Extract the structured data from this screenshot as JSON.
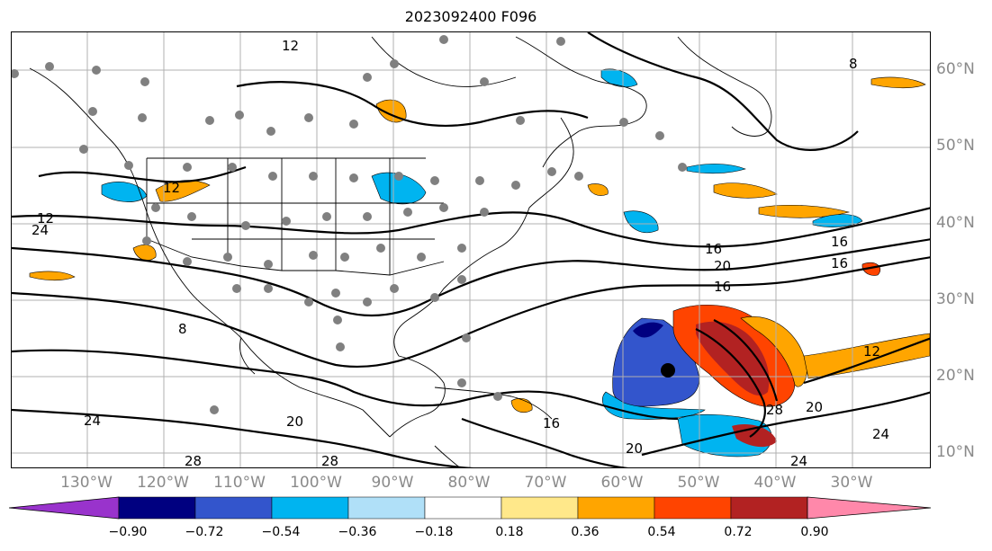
{
  "title": "2023092400 F096",
  "lon_labels": [
    "130°W",
    "120°W",
    "110°W",
    "100°W",
    "90°W",
    "80°W",
    "70°W",
    "60°W",
    "50°W",
    "40°W",
    "30°W"
  ],
  "lat_labels": [
    "60°N",
    "50°N",
    "40°N",
    "30°N",
    "20°N",
    "10°N"
  ],
  "colorbar": {
    "ticks": [
      "−0.90",
      "−0.72",
      "−0.54",
      "−0.36",
      "−0.18",
      "0.18",
      "0.36",
      "0.54",
      "0.72",
      "0.90"
    ],
    "colors": [
      "#9933cc",
      "#000080",
      "#3355cc",
      "#00b4f0",
      "#b0e0f8",
      "#ffffff",
      "#ffe88a",
      "#ffa500",
      "#ff4400",
      "#b22222",
      "#ff88aa"
    ]
  },
  "contour_labels": [
    "12",
    "16",
    "20",
    "24",
    "28",
    "8",
    "12",
    "16",
    "20",
    "24",
    "28",
    "12",
    "16",
    "20",
    "24",
    "8",
    "16",
    "20",
    "24",
    "28",
    "12",
    "16"
  ],
  "colors": {
    "gridline": "#b0b0b0",
    "contour": "#000000",
    "station": "#808080",
    "tick_text": "#8a8a8a"
  }
}
